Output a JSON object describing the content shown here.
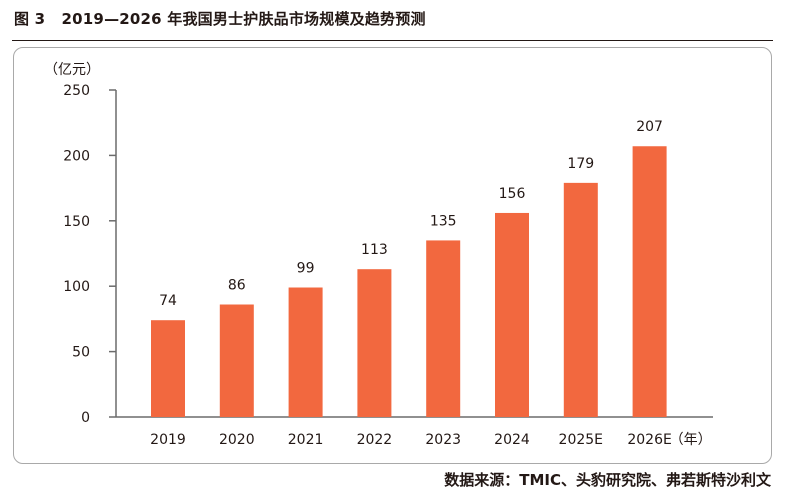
{
  "figure": {
    "title": "图 3   2019—2026 年我国男士护肤品市场规模及趋势预测",
    "source": "数据来源：TMIC、头豹研究院、弗若斯特沙利文"
  },
  "colors": {
    "bar": "#f2683f",
    "axis": "#6b6b6b",
    "text": "#231815",
    "frame": "#a9a9a9"
  },
  "chart_data": {
    "type": "bar",
    "title": "",
    "xlabel": "（年）",
    "ylabel": "（亿元）",
    "categories": [
      "2019",
      "2020",
      "2021",
      "2022",
      "2023",
      "2024",
      "2025E",
      "2026E"
    ],
    "values": [
      74,
      86,
      99,
      113,
      135,
      156,
      179,
      207
    ],
    "data_labels": [
      "74",
      "86",
      "99",
      "113",
      "135",
      "156",
      "179",
      "207"
    ],
    "ylim": [
      0,
      250
    ],
    "yticks": [
      0,
      50,
      100,
      150,
      200,
      250
    ],
    "grid": false,
    "legend": "none"
  }
}
